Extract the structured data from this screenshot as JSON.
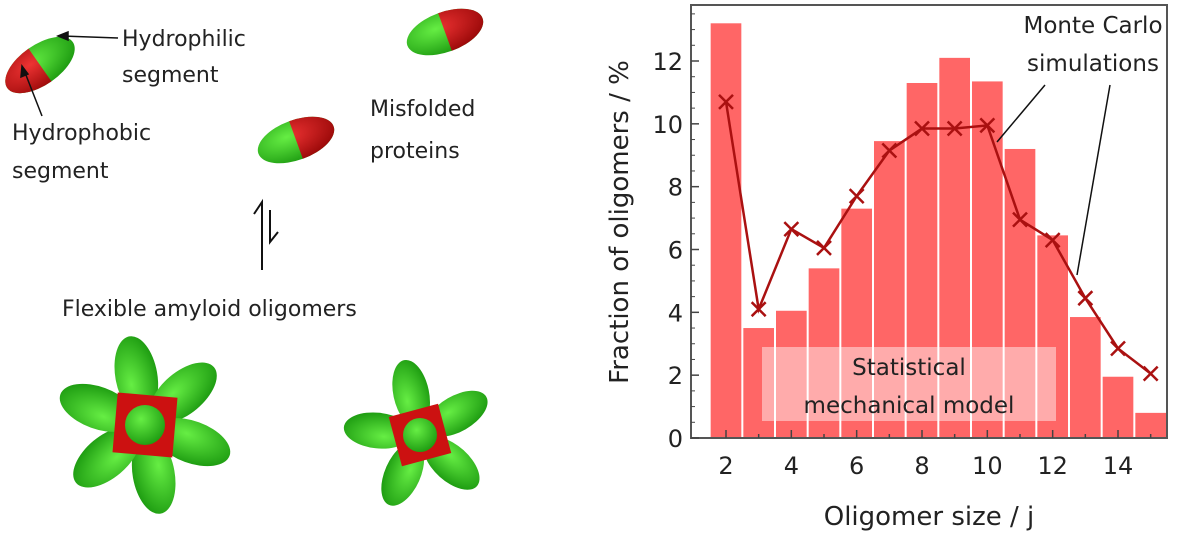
{
  "diagram": {
    "hydrophilic_label": [
      "Hydrophilic",
      "segment"
    ],
    "hydrophobic_label": [
      "Hydrophobic",
      "segment"
    ],
    "misfolded_label": [
      "Misfolded",
      "proteins"
    ],
    "oligomers_label": "Flexible amyloid oligomers",
    "colors": {
      "hydrophilic": "#33bb22",
      "hydrophobic": "#cc1111"
    }
  },
  "chart_data": {
    "type": "bar",
    "xlabel": "Oligomer size / j",
    "ylabel": "Fraction of oligomers / %",
    "xlim": [
      1.1,
      15.6
    ],
    "ylim": [
      0,
      13.9
    ],
    "xticks": [
      2,
      4,
      6,
      8,
      10,
      12,
      14
    ],
    "yticks": [
      0,
      2,
      4,
      6,
      8,
      10,
      12
    ],
    "categories": [
      2,
      3,
      4,
      5,
      6,
      7,
      8,
      9,
      10,
      11,
      12,
      13,
      14,
      15
    ],
    "series": [
      {
        "name": "Statistical mechanical model",
        "label_lines": [
          "Statistical",
          "mechanical model"
        ],
        "kind": "bar",
        "color": "#ff6666",
        "values": [
          13.2,
          3.5,
          4.05,
          5.4,
          7.3,
          9.45,
          11.3,
          12.1,
          11.35,
          9.2,
          6.45,
          3.85,
          1.95,
          0.8
        ]
      },
      {
        "name": "Monte Carlo simulations",
        "label_lines": [
          "Monte Carlo",
          "simulations"
        ],
        "kind": "line",
        "color": "#aa1111",
        "values": [
          10.7,
          4.1,
          6.65,
          6.05,
          7.7,
          9.15,
          9.85,
          9.85,
          9.95,
          6.95,
          6.3,
          4.45,
          2.85,
          2.05
        ]
      }
    ]
  }
}
